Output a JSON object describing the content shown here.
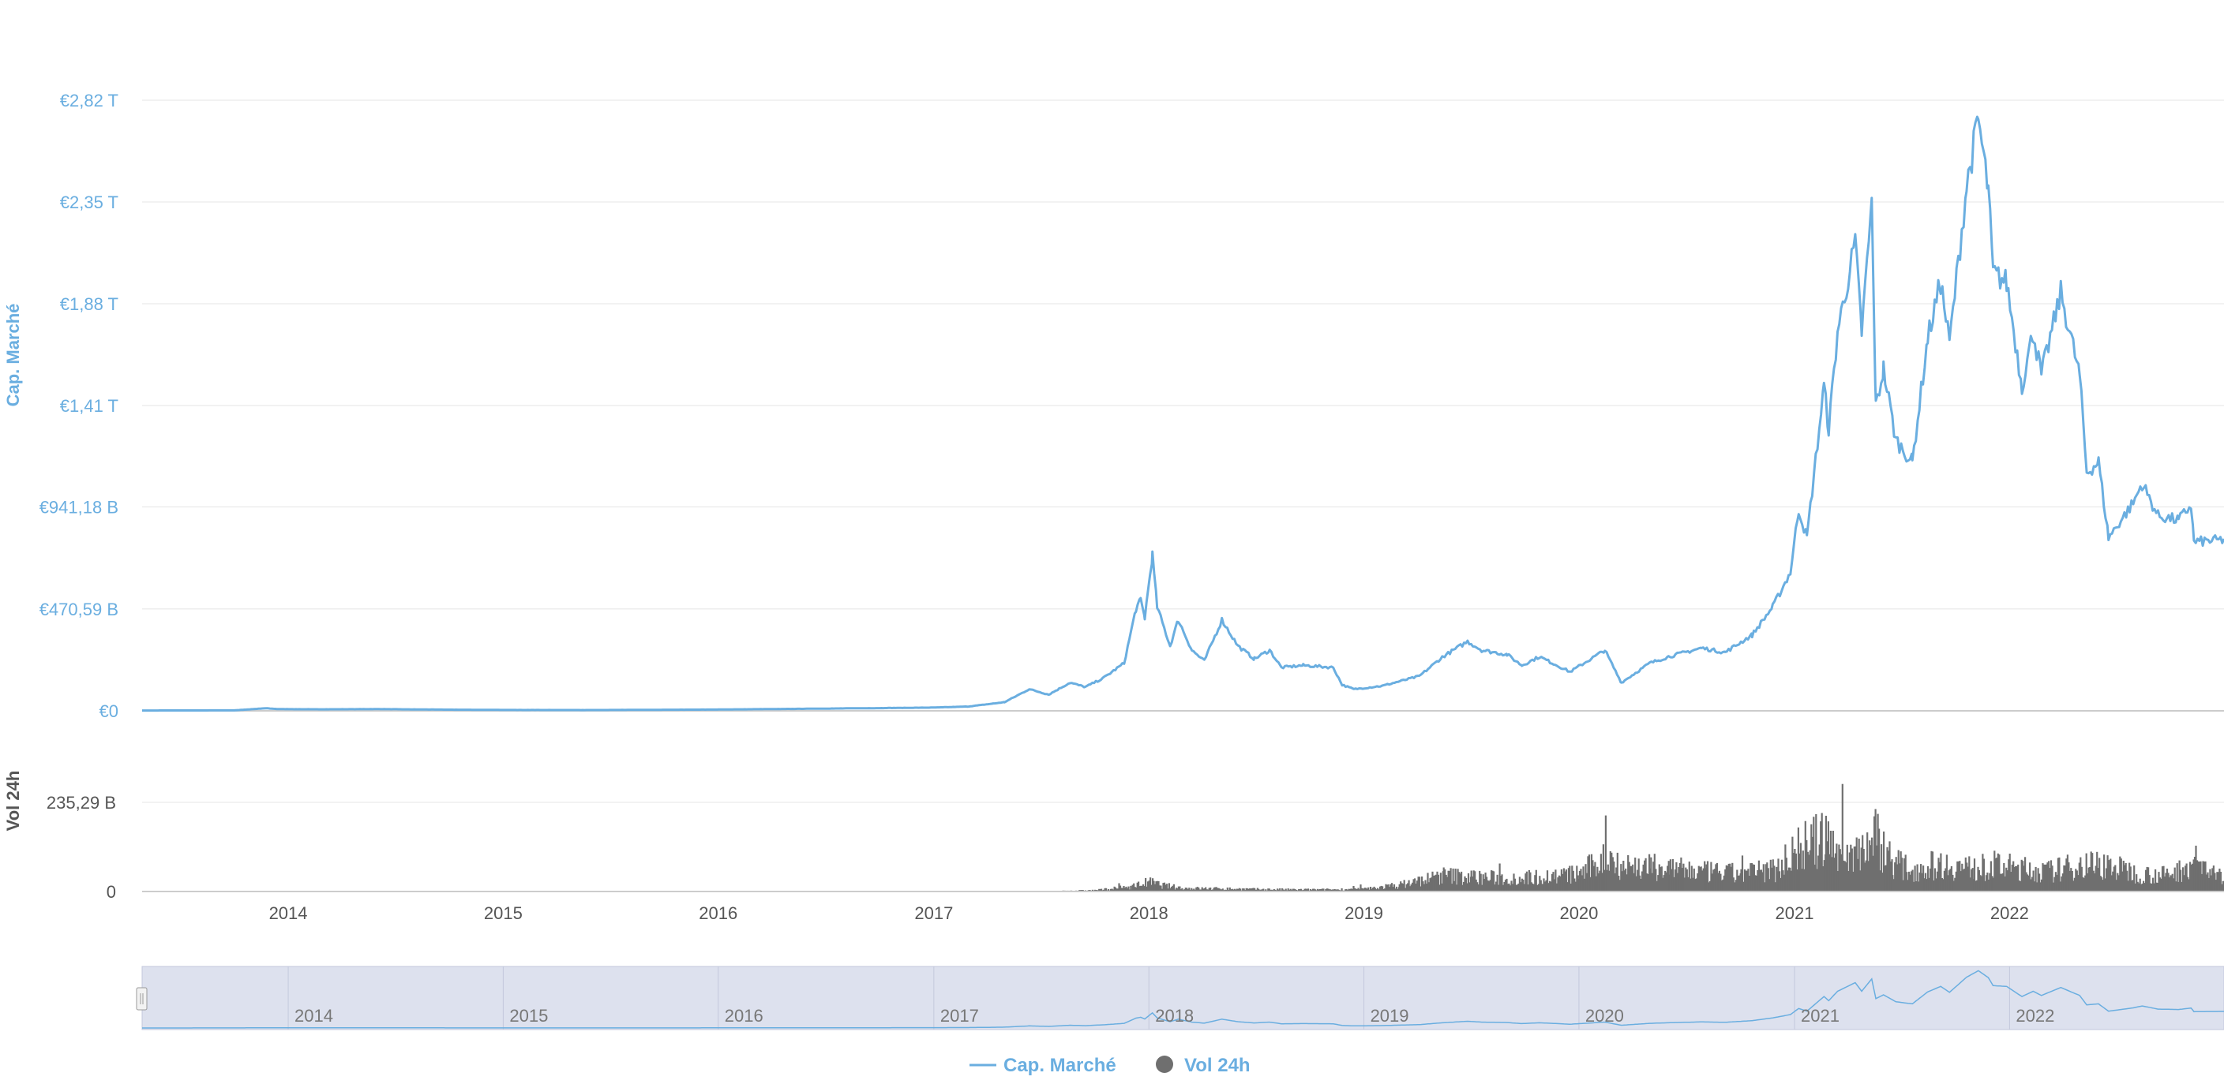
{
  "chart_data": {
    "type": "line",
    "title": "",
    "x_axis": {
      "type": "date",
      "range": [
        "2013-04-28",
        "2022-12-31"
      ],
      "ticks": [
        "2014",
        "2015",
        "2016",
        "2017",
        "2018",
        "2019",
        "2020",
        "2021",
        "2022"
      ]
    },
    "y_axis_market_cap": {
      "label": "Cap. Marché",
      "ylim": [
        0,
        2820000000000
      ],
      "tick_values": [
        0,
        470590000000,
        941180000000,
        1410000000000,
        1880000000000,
        2350000000000,
        2820000000000
      ],
      "tick_labels": [
        "€0",
        "€470,59 B",
        "€941,18 B",
        "€1,41 T",
        "€1,88 T",
        "€2,35 T",
        "€2,82 T"
      ]
    },
    "y_axis_volume": {
      "label": "Vol 24h",
      "ylim": [
        0,
        470580000000
      ],
      "tick_values": [
        0,
        235290000000
      ],
      "tick_labels": [
        "0",
        "235,29 B"
      ]
    },
    "grid": true,
    "legend_position": "bottom-center",
    "series": [
      {
        "name": "Cap. Marché",
        "type": "line",
        "color": "#6aaee0",
        "points": [
          [
            "2013-04-28",
            1500000000.0
          ],
          [
            "2013-10-01",
            2200000000.0
          ],
          [
            "2013-11-25",
            12000000000.0
          ],
          [
            "2013-12-15",
            8000000000.0
          ],
          [
            "2014-03-01",
            7000000000.0
          ],
          [
            "2014-06-01",
            8000000000.0
          ],
          [
            "2014-09-01",
            6000000000.0
          ],
          [
            "2015-01-01",
            4000000000.0
          ],
          [
            "2015-06-01",
            3500000000.0
          ],
          [
            "2016-01-01",
            6000000000.0
          ],
          [
            "2016-06-15",
            10000000000.0
          ],
          [
            "2017-01-01",
            15000000000.0
          ],
          [
            "2017-03-01",
            20000000000.0
          ],
          [
            "2017-05-01",
            40000000000.0
          ],
          [
            "2017-06-12",
            100000000000.0
          ],
          [
            "2017-07-15",
            75000000000.0
          ],
          [
            "2017-08-20",
            130000000000.0
          ],
          [
            "2017-09-15",
            110000000000.0
          ],
          [
            "2017-10-15",
            150000000000.0
          ],
          [
            "2017-11-20",
            220000000000.0
          ],
          [
            "2017-12-10",
            470000000000.0
          ],
          [
            "2017-12-18",
            510000000000.0
          ],
          [
            "2017-12-25",
            430000000000.0
          ],
          [
            "2018-01-07",
            720000000000.0
          ],
          [
            "2018-01-15",
            480000000000.0
          ],
          [
            "2018-02-06",
            300000000000.0
          ],
          [
            "2018-02-20",
            420000000000.0
          ],
          [
            "2018-03-15",
            280000000000.0
          ],
          [
            "2018-04-05",
            230000000000.0
          ],
          [
            "2018-05-05",
            420000000000.0
          ],
          [
            "2018-06-01",
            300000000000.0
          ],
          [
            "2018-06-29",
            240000000000.0
          ],
          [
            "2018-07-25",
            280000000000.0
          ],
          [
            "2018-08-14",
            200000000000.0
          ],
          [
            "2018-09-20",
            210000000000.0
          ],
          [
            "2018-11-10",
            200000000000.0
          ],
          [
            "2018-11-25",
            120000000000.0
          ],
          [
            "2018-12-15",
            100000000000.0
          ],
          [
            "2019-02-01",
            115000000000.0
          ],
          [
            "2019-04-05",
            160000000000.0
          ],
          [
            "2019-05-15",
            250000000000.0
          ],
          [
            "2019-06-26",
            320000000000.0
          ],
          [
            "2019-07-20",
            280000000000.0
          ],
          [
            "2019-09-01",
            260000000000.0
          ],
          [
            "2019-09-26",
            210000000000.0
          ],
          [
            "2019-10-26",
            250000000000.0
          ],
          [
            "2019-12-17",
            180000000000.0
          ],
          [
            "2020-02-14",
            280000000000.0
          ],
          [
            "2020-03-13",
            130000000000.0
          ],
          [
            "2020-04-30",
            220000000000.0
          ],
          [
            "2020-06-01",
            250000000000.0
          ],
          [
            "2020-07-27",
            290000000000.0
          ],
          [
            "2020-09-05",
            270000000000.0
          ],
          [
            "2020-10-21",
            350000000000.0
          ],
          [
            "2020-11-25",
            480000000000.0
          ],
          [
            "2020-12-25",
            640000000000.0
          ],
          [
            "2021-01-08",
            930000000000.0
          ],
          [
            "2021-01-22",
            800000000000.0
          ],
          [
            "2021-02-20",
            1500000000000.0
          ],
          [
            "2021-02-28",
            1300000000000.0
          ],
          [
            "2021-03-15",
            1750000000000.0
          ],
          [
            "2021-04-14",
            2160000000000.0
          ],
          [
            "2021-04-25",
            1750000000000.0
          ],
          [
            "2021-05-12",
            2340000000000.0
          ],
          [
            "2021-05-19",
            1400000000000.0
          ],
          [
            "2021-06-01",
            1580000000000.0
          ],
          [
            "2021-06-22",
            1250000000000.0
          ],
          [
            "2021-07-20",
            1150000000000.0
          ],
          [
            "2021-08-15",
            1720000000000.0
          ],
          [
            "2021-09-06",
            1980000000000.0
          ],
          [
            "2021-09-21",
            1700000000000.0
          ],
          [
            "2021-10-20",
            2420000000000.0
          ],
          [
            "2021-11-09",
            2730000000000.0
          ],
          [
            "2021-11-26",
            2400000000000.0
          ],
          [
            "2021-12-04",
            2020000000000.0
          ],
          [
            "2021-12-27",
            1980000000000.0
          ],
          [
            "2022-01-22",
            1500000000000.0
          ],
          [
            "2022-02-10",
            1750000000000.0
          ],
          [
            "2022-02-24",
            1550000000000.0
          ],
          [
            "2022-03-29",
            1930000000000.0
          ],
          [
            "2022-04-30",
            1550000000000.0
          ],
          [
            "2022-05-12",
            1100000000000.0
          ],
          [
            "2022-06-01",
            1150000000000.0
          ],
          [
            "2022-06-18",
            800000000000.0
          ],
          [
            "2022-07-30",
            960000000000.0
          ],
          [
            "2022-08-14",
            1050000000000.0
          ],
          [
            "2022-09-10",
            900000000000.0
          ],
          [
            "2022-10-15",
            880000000000.0
          ],
          [
            "2022-11-05",
            950000000000.0
          ],
          [
            "2022-11-10",
            780000000000.0
          ],
          [
            "2022-12-31",
            790000000000.0
          ]
        ]
      },
      {
        "name": "Vol 24h",
        "type": "column",
        "color": "#6f6f6f",
        "points": [
          [
            "2017-08-01",
            2000000000.0
          ],
          [
            "2017-10-01",
            4000000000.0
          ],
          [
            "2017-12-01",
            15000000000.0
          ],
          [
            "2017-12-31",
            30000000000.0
          ],
          [
            "2018-01-20",
            20000000000.0
          ],
          [
            "2018-03-01",
            10000000000.0
          ],
          [
            "2018-05-01",
            9000000000.0
          ],
          [
            "2018-07-01",
            7000000000.0
          ],
          [
            "2018-09-01",
            6000000000.0
          ],
          [
            "2018-11-01",
            6000000000.0
          ],
          [
            "2019-01-01",
            8000000000.0
          ],
          [
            "2019-03-01",
            20000000000.0
          ],
          [
            "2019-05-15",
            50000000000.0
          ],
          [
            "2019-07-01",
            45000000000.0
          ],
          [
            "2019-09-01",
            40000000000.0
          ],
          [
            "2019-11-01",
            45000000000.0
          ],
          [
            "2020-01-01",
            55000000000.0
          ],
          [
            "2020-02-20",
            110000000000.0
          ],
          [
            "2020-03-15",
            80000000000.0
          ],
          [
            "2020-05-01",
            75000000000.0
          ],
          [
            "2020-06-01",
            70000000000.0
          ],
          [
            "2020-08-01",
            60000000000.0
          ],
          [
            "2020-10-01",
            55000000000.0
          ],
          [
            "2020-12-01",
            70000000000.0
          ],
          [
            "2021-01-10",
            140000000000.0
          ],
          [
            "2021-02-22",
            160000000000.0
          ],
          [
            "2021-04-01",
            110000000000.0
          ],
          [
            "2021-05-19",
            170000000000.0
          ],
          [
            "2021-06-15",
            95000000000.0
          ],
          [
            "2021-07-15",
            65000000000.0
          ],
          [
            "2021-09-01",
            85000000000.0
          ],
          [
            "2021-11-01",
            70000000000.0
          ],
          [
            "2021-12-05",
            80000000000.0
          ],
          [
            "2022-01-22",
            70000000000.0
          ],
          [
            "2022-03-01",
            60000000000.0
          ],
          [
            "2022-05-12",
            85000000000.0
          ],
          [
            "2022-06-18",
            80000000000.0
          ],
          [
            "2022-08-01",
            55000000000.0
          ],
          [
            "2022-10-01",
            50000000000.0
          ],
          [
            "2022-11-10",
            95000000000.0
          ],
          [
            "2022-12-31",
            35000000000.0
          ]
        ]
      }
    ],
    "navigator": {
      "labels": [
        "2014",
        "2015",
        "2016",
        "2017",
        "2018",
        "2019",
        "2020",
        "2021",
        "2022"
      ]
    }
  }
}
